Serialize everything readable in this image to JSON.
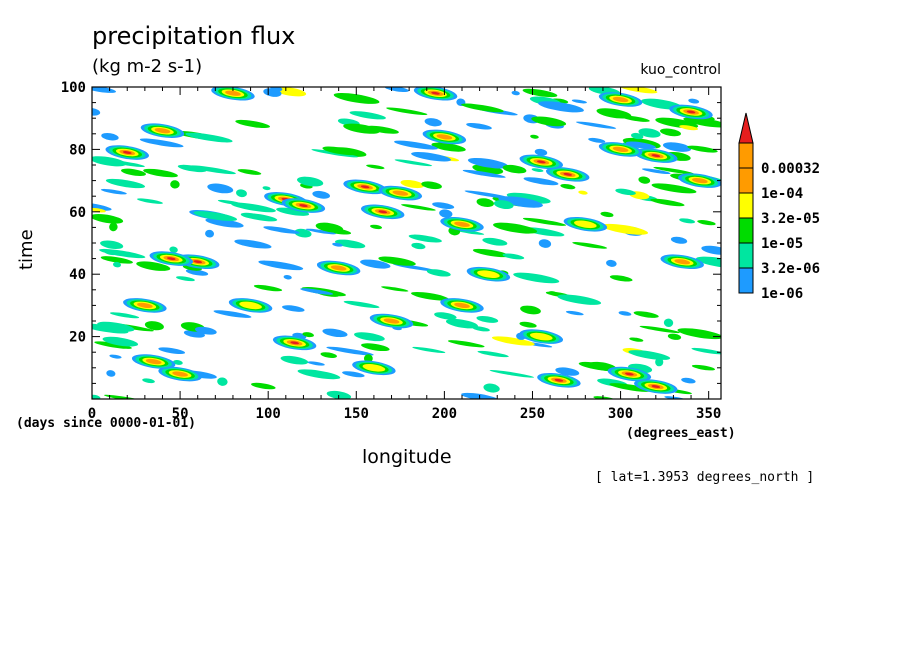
{
  "chart_data": {
    "type": "heatmap",
    "title": "precipitation flux",
    "subtitle": "(kg m-2 s-1)",
    "dataset_label": "kuo_control",
    "xlabel": "longitude",
    "x_units": "(degrees_east)",
    "ylabel": "time",
    "y_units": "(days since 0000-01-01)",
    "footnote": "[ lat=1.3953 degrees_north ]",
    "xlim": [
      0,
      357
    ],
    "ylim": [
      0,
      100
    ],
    "x_ticks": [
      "0",
      "50",
      "100",
      "150",
      "200",
      "250",
      "300",
      "350"
    ],
    "y_ticks": [
      "20",
      "40",
      "60",
      "80",
      "100"
    ],
    "colorbar": {
      "levels": [
        "1e-06",
        "3.2e-06",
        "1e-05",
        "3.2e-05",
        "1e-04",
        "0.00032"
      ],
      "colors": [
        "#1e9bff",
        "#00e6a0",
        "#00dc00",
        "#ffff00",
        "#ff9b00",
        "#e61e1e"
      ]
    },
    "features": [
      {
        "lon": 20,
        "time": 79,
        "level": 5
      },
      {
        "lon": 40,
        "time": 86,
        "level": 4
      },
      {
        "lon": 110,
        "time": 64,
        "level": 5
      },
      {
        "lon": 120,
        "time": 62,
        "level": 5
      },
      {
        "lon": 165,
        "time": 60,
        "level": 5
      },
      {
        "lon": 155,
        "time": 68,
        "level": 5
      },
      {
        "lon": 175,
        "time": 66,
        "level": 4
      },
      {
        "lon": 60,
        "time": 44,
        "level": 5
      },
      {
        "lon": 45,
        "time": 45,
        "level": 5
      },
      {
        "lon": 30,
        "time": 30,
        "level": 4
      },
      {
        "lon": 115,
        "time": 18,
        "level": 5
      },
      {
        "lon": 170,
        "time": 25,
        "level": 4
      },
      {
        "lon": 270,
        "time": 72,
        "level": 5
      },
      {
        "lon": 255,
        "time": 76,
        "level": 5
      },
      {
        "lon": 320,
        "time": 78,
        "level": 5
      },
      {
        "lon": 300,
        "time": 80,
        "level": 4
      },
      {
        "lon": 345,
        "time": 70,
        "level": 4
      },
      {
        "lon": 340,
        "time": 92,
        "level": 5
      },
      {
        "lon": 200,
        "time": 84,
        "level": 4
      },
      {
        "lon": 210,
        "time": 56,
        "level": 4
      },
      {
        "lon": 305,
        "time": 8,
        "level": 5
      },
      {
        "lon": 320,
        "time": 4,
        "level": 5
      },
      {
        "lon": 265,
        "time": 6,
        "level": 5
      },
      {
        "lon": 50,
        "time": 8,
        "level": 4
      },
      {
        "lon": 35,
        "time": 12,
        "level": 4
      },
      {
        "lon": 335,
        "time": 44,
        "level": 4
      },
      {
        "lon": 210,
        "time": 30,
        "level": 4
      },
      {
        "lon": 255,
        "time": 20,
        "level": 3
      },
      {
        "lon": 140,
        "time": 42,
        "level": 4
      },
      {
        "lon": 80,
        "time": 98,
        "level": 4
      },
      {
        "lon": 195,
        "time": 98,
        "level": 5
      },
      {
        "lon": 300,
        "time": 96,
        "level": 4
      },
      {
        "lon": 90,
        "time": 30,
        "level": 3
      },
      {
        "lon": 160,
        "time": 10,
        "level": 3
      },
      {
        "lon": 225,
        "time": 40,
        "level": 3
      },
      {
        "lon": 280,
        "time": 56,
        "level": 3
      }
    ]
  }
}
